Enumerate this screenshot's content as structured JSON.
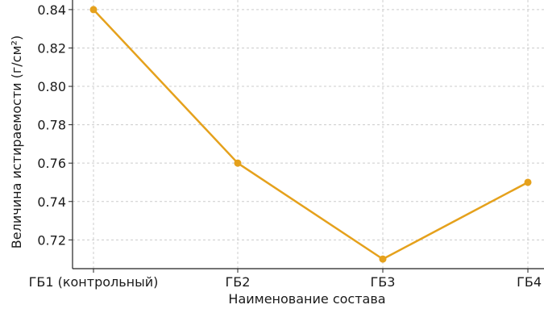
{
  "chart_data": {
    "type": "line",
    "title": "",
    "xlabel": "Наименование состава",
    "ylabel": "Величина истираемости (г/см²)",
    "categories": [
      "ГБ1 (контрольный)",
      "ГБ2",
      "ГБ3",
      "ГБ4"
    ],
    "series": [
      {
        "values": [
          0.84,
          0.76,
          0.71,
          0.75
        ]
      }
    ],
    "ylim": [
      0.705,
      0.845
    ],
    "yticks": [
      "0.72",
      "0.74",
      "0.76",
      "0.78",
      "0.80",
      "0.82",
      "0.84"
    ],
    "grid": true,
    "line_color": "#e5a11c"
  }
}
